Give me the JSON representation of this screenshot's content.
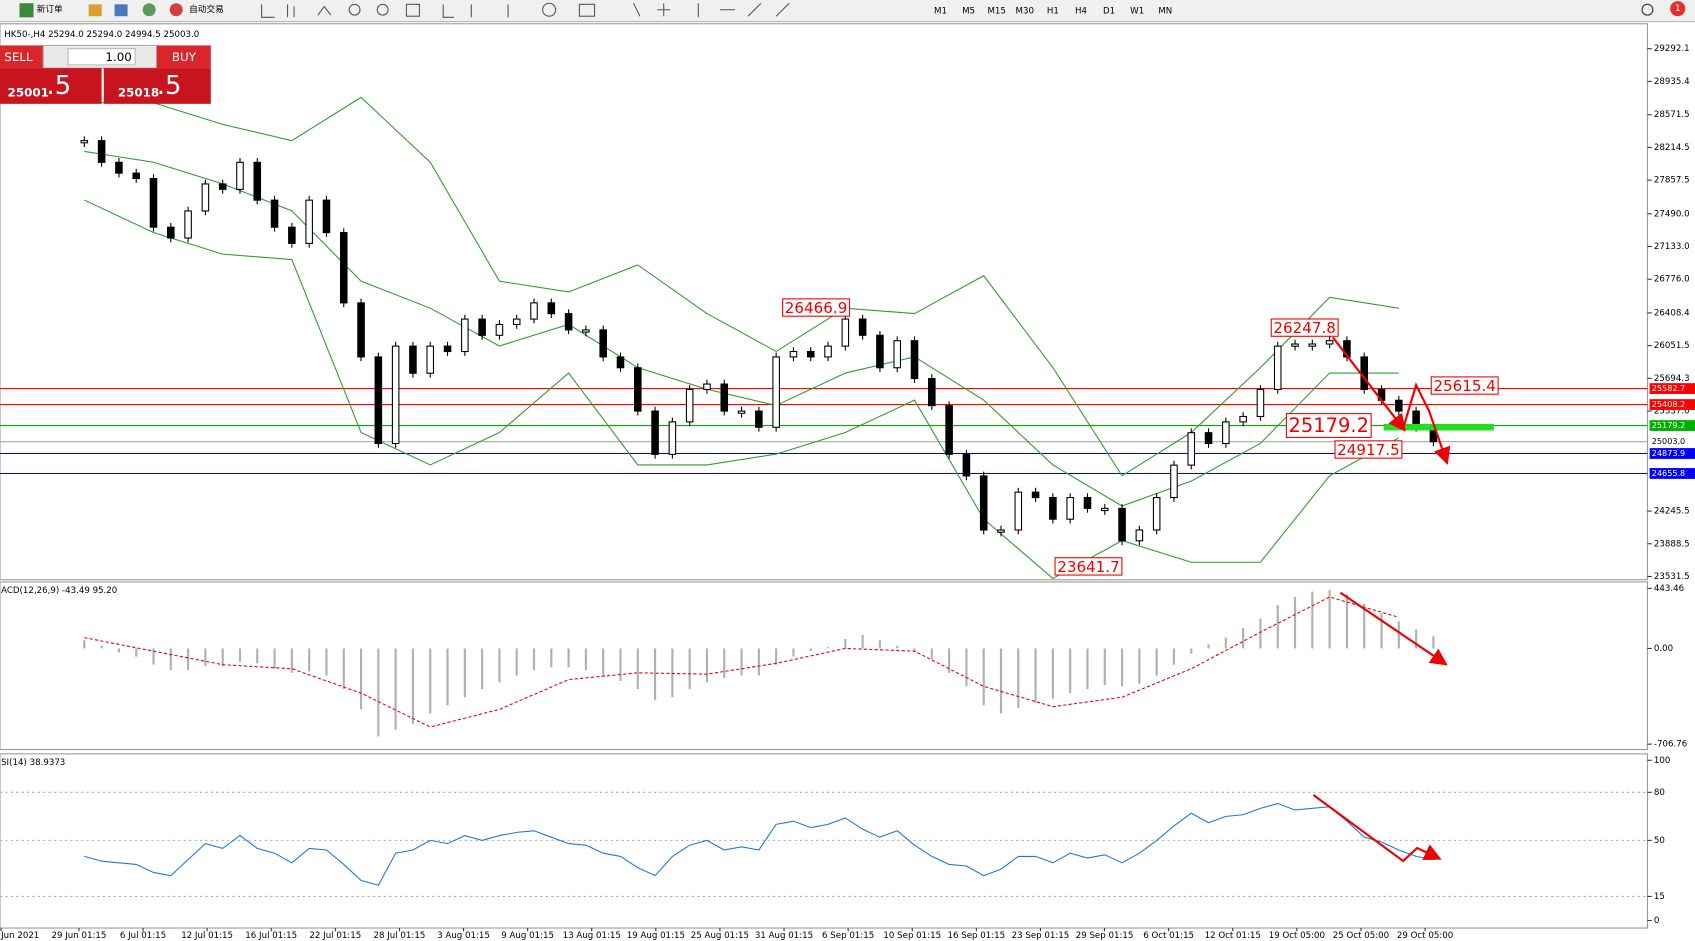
{
  "toolbar": {
    "new_order": "新订单",
    "auto_trading": "自动交易",
    "timeframes": [
      "M1",
      "M5",
      "M15",
      "M30",
      "H1",
      "H4",
      "D1",
      "W1",
      "MN"
    ],
    "notifications": 1
  },
  "trade_panel": {
    "sell": "SELL",
    "buy": "BUY",
    "lots": "1.00",
    "bid_main": "25001",
    "bid_big": ".5",
    "ask_main": "25018",
    "ask_big": ".5"
  },
  "price_chart": {
    "header": "HK50-,H4 25294.0 25294.0 24994.5 25003.0",
    "ylim": [
      23496,
      29564
    ],
    "yticks": [
      29292.1,
      28935.4,
      28571.5,
      28214.5,
      27857.5,
      {
        "value": 27490,
        "label": "27490.0"
      },
      {
        "value": 27133,
        "label": "27133.0"
      },
      {
        "value": 26776,
        "label": "26776.0"
      },
      26408.4,
      26051.5,
      25694.3,
      {
        "value": 25337,
        "label": "25337.0"
      },
      24245.5,
      23888.5,
      23531.5
    ],
    "closes": [
      28289,
      28052,
      27934,
      27875,
      27344,
      27226,
      27521,
      27816,
      27757,
      28052,
      27639,
      27344,
      27167,
      27639,
      27285,
      26518,
      25928,
      24983,
      26046,
      25750,
      26046,
      25987,
      26341,
      26164,
      26282,
      26341,
      26518,
      26400,
      26223,
      26223,
      25928,
      25810,
      25337,
      24865,
      25219,
      25573,
      25632,
      25337,
      25337,
      25160,
      25928,
      25987,
      25928,
      26046,
      26341,
      26164,
      25810,
      26105,
      25692,
      25396,
      24865,
      24629,
      24039,
      24039,
      24452,
      24393,
      24157,
      24393,
      24275,
      24275,
      23921,
      24039,
      24393,
      24747,
      25101,
      24983,
      25219,
      25278,
      25573,
      26046,
      26069,
      26069,
      26105,
      25928,
      25573,
      25455,
      25337,
      25160,
      25003
    ],
    "bands": {
      "color": "#2e9e2e",
      "upper": [
        28702,
        28702,
        28466,
        28289,
        28761,
        28053,
        26755,
        26637,
        26932,
        26401,
        25988,
        26460,
        26401,
        26814,
        25811,
        24631,
        25103,
        25811,
        26578,
        26460
      ],
      "middle": [
        28171,
        28053,
        27817,
        27522,
        26755,
        26460,
        26047,
        26283,
        25811,
        25575,
        25398,
        25752,
        25929,
        25457,
        24749,
        24301,
        24572,
        24985,
        25752,
        25752
      ],
      "lower": [
        27640,
        27286,
        27050,
        26991,
        25103,
        24749,
        25103,
        25752,
        24749,
        24749,
        24867,
        25103,
        25457,
        24159,
        23510,
        23923,
        23687,
        23687,
        24631,
        25044
      ]
    },
    "price_lines": [
      {
        "value": 25582.7,
        "color": "#ff0000"
      },
      {
        "value": 25408.2,
        "color": "#ff0000"
      },
      {
        "value": 25179.2,
        "color": "#00b000"
      },
      {
        "value": 25003,
        "label": "25003.0",
        "color": "#000000"
      },
      {
        "value": 24873.9,
        "color": "#0000ff"
      },
      {
        "value": 24655.8,
        "color": "#0000ff"
      }
    ],
    "annotations": [
      26466.9,
      26247.8,
      25615.4,
      25179.2,
      24917.5,
      23641.7
    ]
  },
  "macd": {
    "header": "ACD(12,26,9) -43.49 95.20",
    "ylim": [
      -746.7,
      491.4
    ],
    "yticks": [
      443.46,
      {
        "value": 0,
        "label": "0.00"
      },
      -706.76
    ],
    "histogram": [
      60,
      20,
      -30,
      -60,
      -120,
      -160,
      -160,
      -130,
      -130,
      -100,
      -110,
      -150,
      -180,
      -170,
      -200,
      -300,
      -450,
      -650,
      -600,
      -560,
      -480,
      -420,
      -360,
      -300,
      -250,
      -200,
      -160,
      -140,
      -140,
      -160,
      -200,
      -240,
      -300,
      -380,
      -360,
      -300,
      -250,
      -220,
      -200,
      -200,
      -120,
      -60,
      -20,
      10,
      70,
      100,
      60,
      20,
      -20,
      -80,
      -180,
      -280,
      -420,
      -480,
      -440,
      -400,
      -370,
      -330,
      -300,
      -270,
      -280,
      -260,
      -200,
      -120,
      -40,
      30,
      80,
      150,
      220,
      320,
      380,
      420,
      430,
      400,
      330,
      260,
      200,
      140,
      90
    ],
    "signal": [
      80,
      -20,
      -120,
      -150,
      -330,
      -580,
      -450,
      -230,
      -180,
      -190,
      -110,
      0,
      -20,
      -280,
      -430,
      -360,
      -150,
      120,
      380,
      230
    ]
  },
  "rsi": {
    "header": "SI(14) 38.9373",
    "ylim": [
      -4.7,
      104
    ],
    "yticks": [
      100,
      80,
      50,
      15,
      0
    ],
    "values": [
      40,
      37,
      36,
      35,
      30,
      28,
      38,
      48,
      45,
      53,
      45,
      42,
      36,
      45,
      44,
      35,
      25,
      22,
      42,
      44,
      50,
      48,
      53,
      50,
      53,
      55,
      56,
      52,
      48,
      47,
      42,
      40,
      33,
      28,
      40,
      47,
      50,
      44,
      46,
      44,
      60,
      62,
      58,
      60,
      64,
      57,
      52,
      56,
      47,
      40,
      35,
      34,
      28,
      32,
      40,
      40,
      36,
      42,
      39,
      41,
      36,
      42,
      50,
      59,
      67,
      61,
      65,
      66,
      70,
      73,
      69,
      70,
      71,
      62,
      52,
      49,
      44,
      40,
      38
    ]
  },
  "time_axis": [
    "Jun 2021",
    "29 Jun 01:15",
    "6 Jul 01:15",
    "12 Jul 01:15",
    "16 Jul 01:15",
    "22 Jul 01:15",
    "28 Jul 01:15",
    "3 Aug 01:15",
    "9 Aug 01:15",
    "13 Aug 01:15",
    "19 Aug 01:15",
    "25 Aug 01:15",
    "31 Aug 01:15",
    "6 Sep 01:15",
    "10 Sep 01:15",
    "16 Sep 01:15",
    "23 Sep 01:15",
    "29 Sep 01:15",
    "6 Oct 01:15",
    "12 Oct 01:15",
    "19 Oct 05:00",
    "25 Oct 05:00",
    "29 Oct 05:00"
  ]
}
